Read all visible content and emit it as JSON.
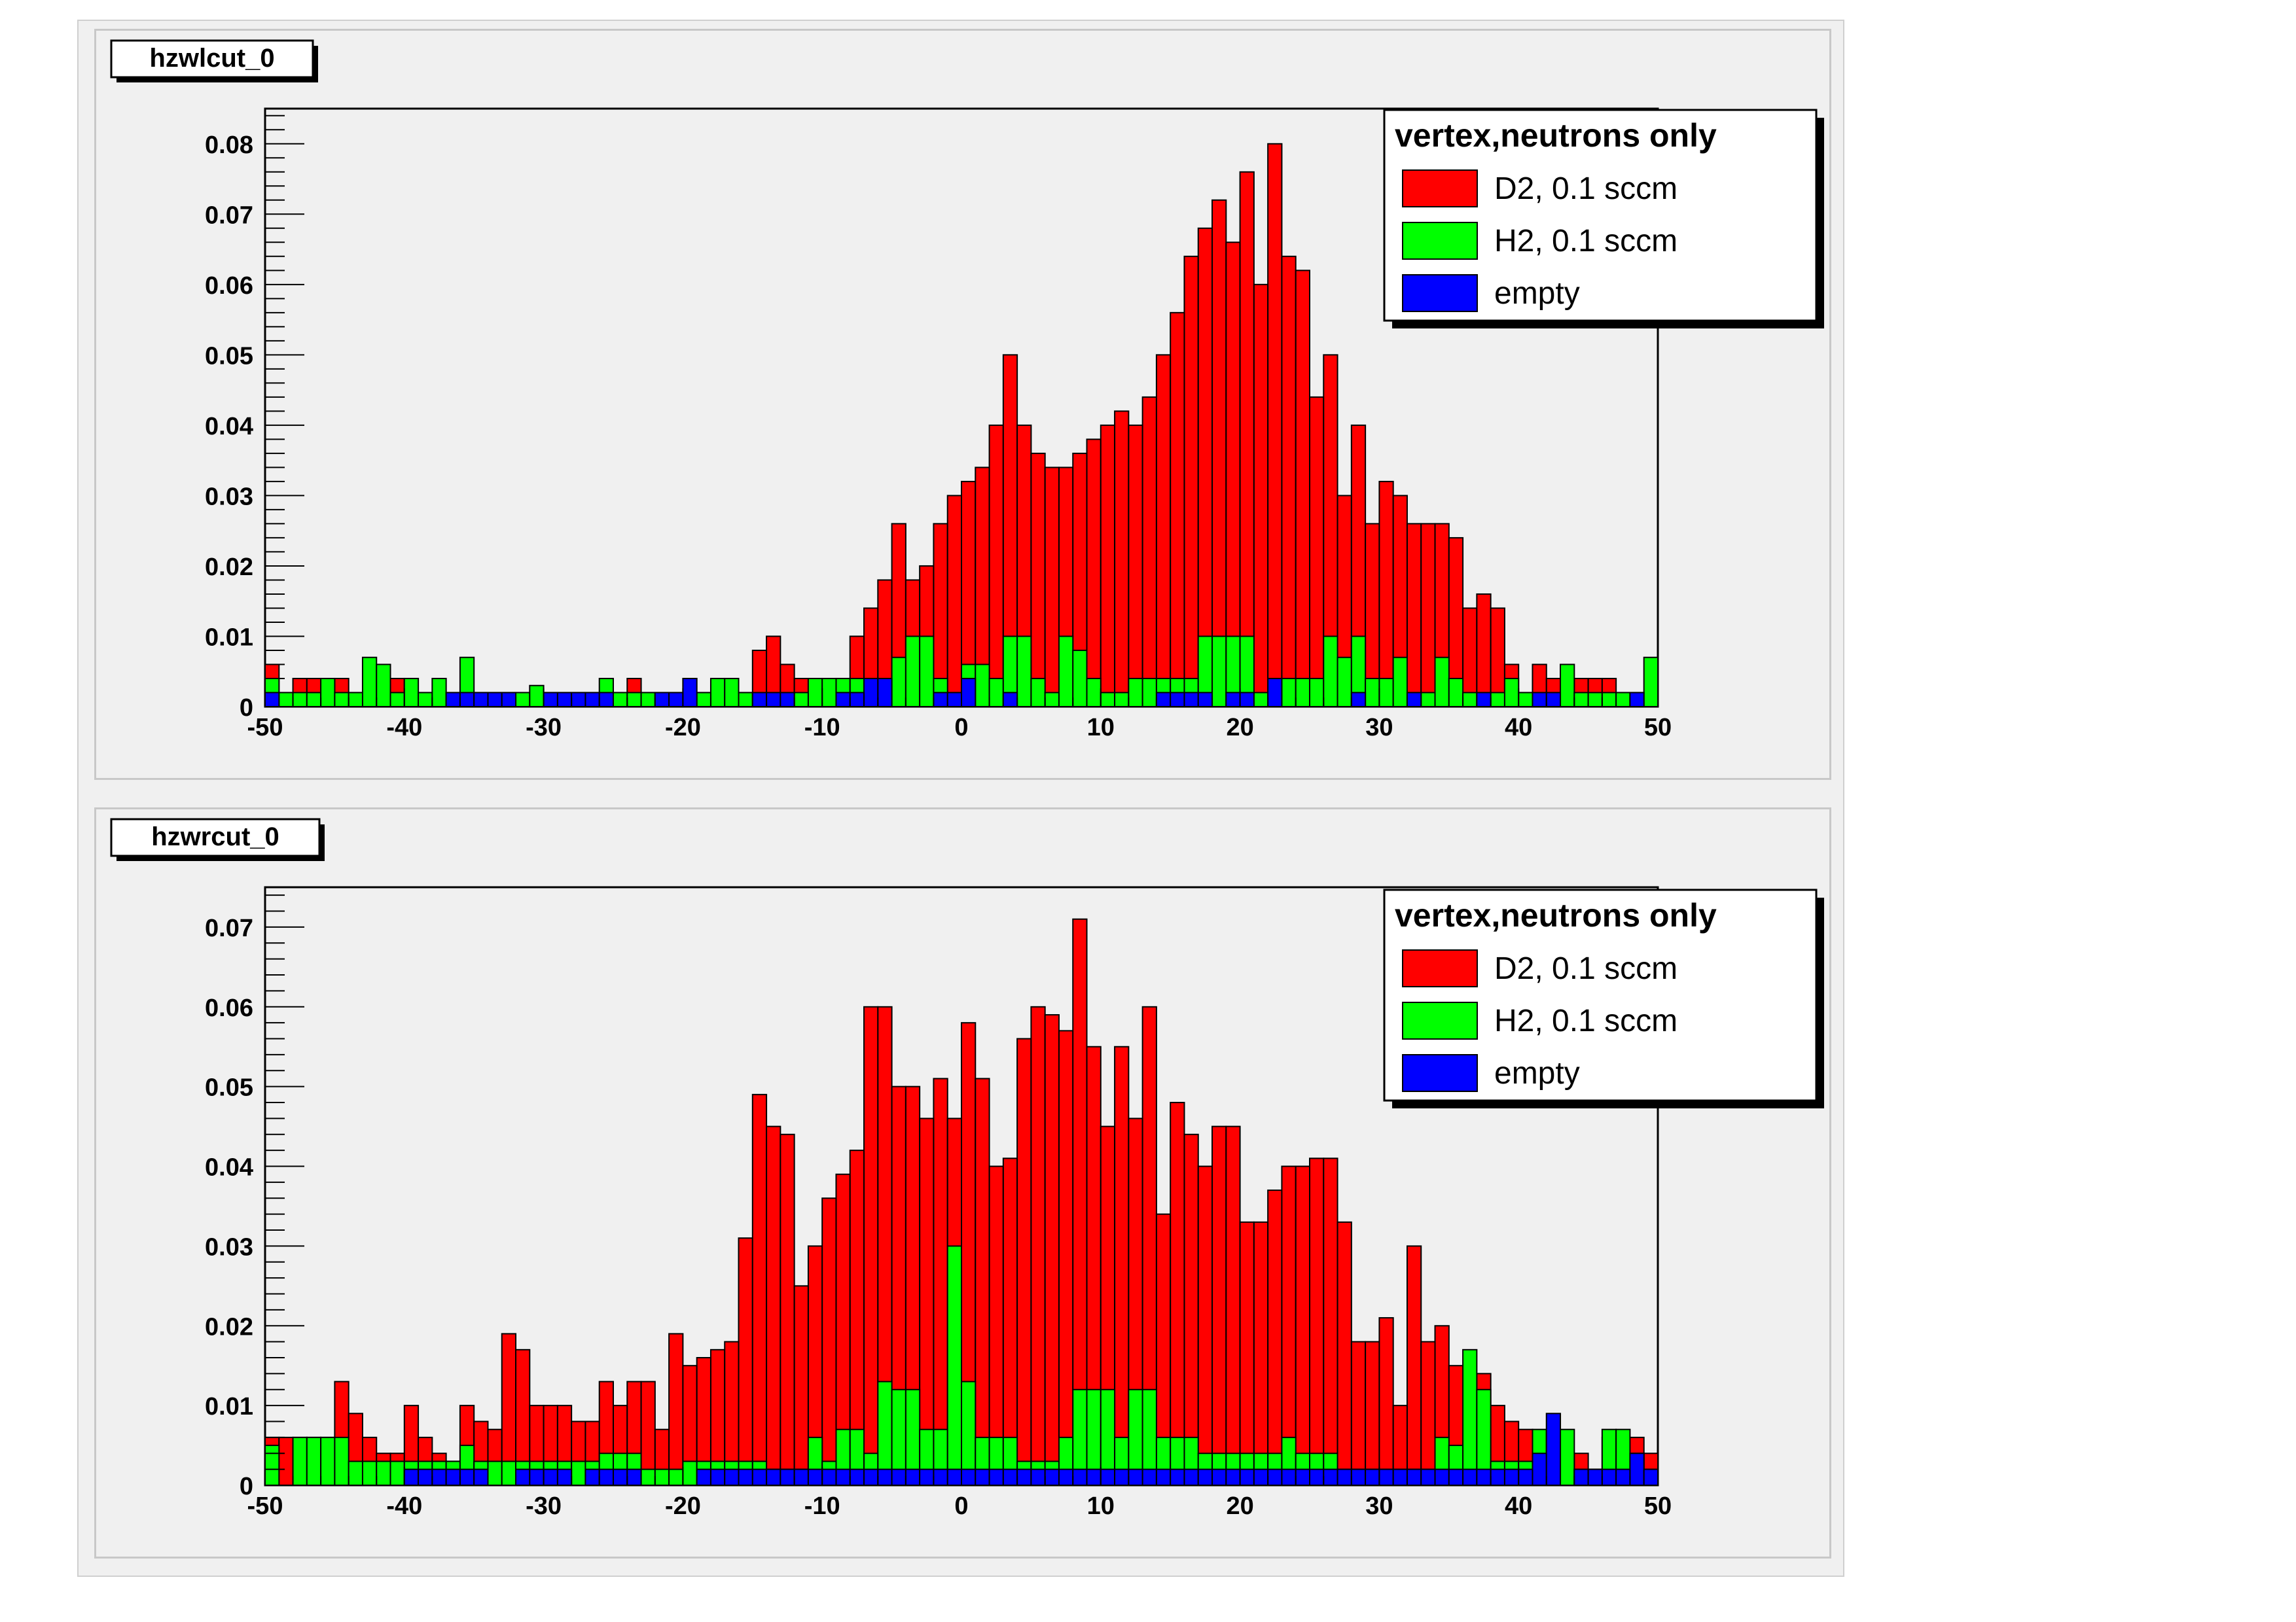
{
  "colors": {
    "D2": "#ff0000",
    "H2": "#00ff00",
    "empty": "#0000ff",
    "pad_background": "#f0f0f0",
    "axes": "#000000"
  },
  "pads": [
    {
      "title": "hzwlcut_0",
      "legend": {
        "header": "vertex,neutrons only",
        "entries": [
          {
            "label": "D2, 0.1 sccm",
            "color": "#ff0000"
          },
          {
            "label": "H2, 0.1 sccm",
            "color": "#00ff00"
          },
          {
            "label": "empty",
            "color": "#0000ff"
          }
        ]
      }
    },
    {
      "title": "hzwrcut_0",
      "legend": {
        "header": "vertex,neutrons only",
        "entries": [
          {
            "label": "D2, 0.1 sccm",
            "color": "#ff0000"
          },
          {
            "label": "H2, 0.1 sccm",
            "color": "#00ff00"
          },
          {
            "label": "empty",
            "color": "#0000ff"
          }
        ]
      }
    }
  ],
  "chart_data": [
    {
      "type": "histogram",
      "title": "hzwlcut_0",
      "bin_range": [
        -50,
        50
      ],
      "xlim": [
        -50,
        50
      ],
      "ylim": [
        0,
        0.085
      ],
      "x_ticks": [
        -50,
        -40,
        -30,
        -20,
        -10,
        0,
        10,
        20,
        30,
        40,
        50
      ],
      "y_ticks": [
        0,
        0.01,
        0.02,
        0.03,
        0.04,
        0.05,
        0.06,
        0.07,
        0.08
      ],
      "x_tick_labels": [
        "-50",
        "-40",
        "-30",
        "-20",
        "-10",
        "0",
        "10",
        "20",
        "30",
        "40",
        "50"
      ],
      "y_tick_labels": [
        "0",
        "0.01",
        "0.02",
        "0.03",
        "0.04",
        "0.05",
        "0.06",
        "0.07",
        "0.08"
      ],
      "series": [
        {
          "name": "D2, 0.1 sccm",
          "color": "#ff0000",
          "values": [
            0.006,
            0.002,
            0.004,
            0.004,
            0.004,
            0.004,
            0.002,
            0.002,
            0.004,
            0.004,
            0.004,
            0.002,
            0.002,
            0.002,
            0.002,
            0.002,
            0.002,
            0.002,
            0.002,
            0.002,
            0.002,
            0.002,
            0.002,
            0.002,
            0.002,
            0.002,
            0.004,
            0.002,
            0.002,
            0.002,
            0.002,
            0.002,
            0.002,
            0.002,
            0.002,
            0.008,
            0.01,
            0.006,
            0.004,
            0.002,
            0.002,
            0.004,
            0.01,
            0.014,
            0.018,
            0.026,
            0.018,
            0.02,
            0.026,
            0.03,
            0.032,
            0.034,
            0.04,
            0.05,
            0.04,
            0.036,
            0.034,
            0.034,
            0.036,
            0.038,
            0.04,
            0.042,
            0.04,
            0.044,
            0.05,
            0.056,
            0.064,
            0.068,
            0.072,
            0.066,
            0.076,
            0.06,
            0.08,
            0.064,
            0.062,
            0.044,
            0.05,
            0.03,
            0.04,
            0.026,
            0.032,
            0.03,
            0.026,
            0.026,
            0.026,
            0.024,
            0.014,
            0.016,
            0.014,
            0.006,
            0.002,
            0.006,
            0.004,
            0.004,
            0.004,
            0.004,
            0.004,
            0.002,
            0.002,
            0.002
          ]
        },
        {
          "name": "H2, 0.1 sccm",
          "color": "#00ff00",
          "values": [
            0.004,
            0.002,
            0.002,
            0.002,
            0.004,
            0.002,
            0.002,
            0.007,
            0.006,
            0.002,
            0.004,
            0.002,
            0.004,
            0.002,
            0.007,
            0.002,
            0.002,
            0.002,
            0.002,
            0.003,
            0.002,
            0.002,
            0.002,
            0.002,
            0.004,
            0.002,
            0.002,
            0.002,
            0.002,
            0.002,
            0.002,
            0.002,
            0.004,
            0.004,
            0.002,
            0.002,
            0.002,
            0.002,
            0.002,
            0.004,
            0.004,
            0.004,
            0.004,
            0.004,
            0.002,
            0.007,
            0.01,
            0.01,
            0.004,
            0.002,
            0.006,
            0.006,
            0.004,
            0.01,
            0.01,
            0.004,
            0.002,
            0.01,
            0.008,
            0.004,
            0.002,
            0.002,
            0.004,
            0.004,
            0.004,
            0.004,
            0.004,
            0.01,
            0.01,
            0.01,
            0.01,
            0.002,
            0.002,
            0.004,
            0.004,
            0.004,
            0.01,
            0.007,
            0.01,
            0.004,
            0.004,
            0.007,
            0.002,
            0.002,
            0.007,
            0.004,
            0.002,
            0.002,
            0.002,
            0.004,
            0.002,
            0.002,
            0.002,
            0.006,
            0.002,
            0.002,
            0.002,
            0.002,
            0.002,
            0.007
          ]
        },
        {
          "name": "empty",
          "color": "#0000ff",
          "values": [
            0.002,
            0,
            0,
            0,
            0,
            0,
            0,
            0,
            0,
            0,
            0,
            0,
            0,
            0.002,
            0.002,
            0.002,
            0.002,
            0.002,
            0,
            0,
            0.002,
            0.002,
            0.002,
            0.002,
            0.002,
            0,
            0,
            0,
            0.002,
            0.002,
            0.004,
            0,
            0,
            0,
            0,
            0.002,
            0.002,
            0.002,
            0,
            0,
            0,
            0.002,
            0.002,
            0.004,
            0.004,
            0,
            0,
            0,
            0.002,
            0.002,
            0.004,
            0,
            0,
            0.002,
            0,
            0,
            0,
            0,
            0,
            0,
            0,
            0,
            0,
            0,
            0.002,
            0.002,
            0.002,
            0.002,
            0,
            0.002,
            0.002,
            0,
            0.004,
            0,
            0,
            0,
            0,
            0,
            0.002,
            0,
            0,
            0,
            0.002,
            0,
            0,
            0,
            0,
            0.002,
            0,
            0,
            0,
            0.002,
            0.002,
            0,
            0,
            0,
            0,
            0,
            0.002,
            0
          ]
        }
      ]
    },
    {
      "type": "histogram",
      "title": "hzwrcut_0",
      "bin_range": [
        -50,
        50
      ],
      "xlim": [
        -50,
        50
      ],
      "ylim": [
        0,
        0.075
      ],
      "x_ticks": [
        -50,
        -40,
        -30,
        -20,
        -10,
        0,
        10,
        20,
        30,
        40,
        50
      ],
      "y_ticks": [
        0,
        0.01,
        0.02,
        0.03,
        0.04,
        0.05,
        0.06,
        0.07
      ],
      "x_tick_labels": [
        "-50",
        "-40",
        "-30",
        "-20",
        "-10",
        "0",
        "10",
        "20",
        "30",
        "40",
        "50"
      ],
      "y_tick_labels": [
        "0",
        "0.01",
        "0.02",
        "0.03",
        "0.04",
        "0.05",
        "0.06",
        "0.07"
      ],
      "series": [
        {
          "name": "D2, 0.1 sccm",
          "color": "#ff0000",
          "values": [
            0.006,
            0.006,
            0.006,
            0.006,
            0.006,
            0.013,
            0.009,
            0.006,
            0.004,
            0.004,
            0.01,
            0.006,
            0.004,
            0.003,
            0.01,
            0.008,
            0.007,
            0.019,
            0.017,
            0.01,
            0.01,
            0.01,
            0.008,
            0.008,
            0.013,
            0.01,
            0.013,
            0.013,
            0.007,
            0.019,
            0.015,
            0.016,
            0.017,
            0.018,
            0.031,
            0.049,
            0.045,
            0.044,
            0.025,
            0.03,
            0.036,
            0.039,
            0.042,
            0.06,
            0.06,
            0.05,
            0.05,
            0.046,
            0.051,
            0.046,
            0.058,
            0.051,
            0.04,
            0.041,
            0.056,
            0.06,
            0.059,
            0.057,
            0.071,
            0.055,
            0.045,
            0.055,
            0.046,
            0.06,
            0.034,
            0.048,
            0.044,
            0.04,
            0.045,
            0.045,
            0.033,
            0.033,
            0.037,
            0.04,
            0.04,
            0.041,
            0.041,
            0.033,
            0.018,
            0.018,
            0.021,
            0.01,
            0.03,
            0.018,
            0.02,
            0.015,
            0.007,
            0.014,
            0.01,
            0.008,
            0.007,
            0.003,
            0.004,
            0.004,
            0.004,
            0.002,
            0.006,
            0.006,
            0.006,
            0.004
          ]
        },
        {
          "name": "H2, 0.1 sccm",
          "color": "#00ff00",
          "values": [
            0.005,
            0,
            0.006,
            0.006,
            0.006,
            0.006,
            0.003,
            0.003,
            0.003,
            0.003,
            0.003,
            0.003,
            0.003,
            0.003,
            0.005,
            0.003,
            0.003,
            0.003,
            0.003,
            0.003,
            0.003,
            0.003,
            0.003,
            0.003,
            0.004,
            0.004,
            0.004,
            0.002,
            0.002,
            0.002,
            0.003,
            0.003,
            0.003,
            0.003,
            0.003,
            0.003,
            0.002,
            0.002,
            0.002,
            0.006,
            0.003,
            0.007,
            0.007,
            0.004,
            0.013,
            0.012,
            0.012,
            0.007,
            0.007,
            0.03,
            0.013,
            0.006,
            0.006,
            0.006,
            0.003,
            0.003,
            0.003,
            0.006,
            0.012,
            0.012,
            0.012,
            0.006,
            0.012,
            0.012,
            0.006,
            0.006,
            0.006,
            0.004,
            0.004,
            0.004,
            0.004,
            0.004,
            0.004,
            0.006,
            0.004,
            0.004,
            0.004,
            0.002,
            0.002,
            0.002,
            0.002,
            0.002,
            0.002,
            0.002,
            0.006,
            0.005,
            0.017,
            0.012,
            0.003,
            0.003,
            0.003,
            0.007,
            0.007,
            0.007,
            0.002,
            0.002,
            0.007,
            0.007,
            0.004,
            0.002
          ]
        },
        {
          "name": "empty",
          "color": "#0000ff",
          "values": [
            0,
            0,
            0,
            0,
            0,
            0,
            0,
            0,
            0,
            0,
            0.002,
            0.002,
            0.002,
            0.002,
            0.002,
            0.002,
            0,
            0,
            0.002,
            0.002,
            0.002,
            0.002,
            0,
            0.002,
            0.002,
            0.002,
            0.002,
            0,
            0,
            0,
            0,
            0.002,
            0.002,
            0.002,
            0.002,
            0.002,
            0.002,
            0.002,
            0.002,
            0.002,
            0.002,
            0.002,
            0.002,
            0.002,
            0.002,
            0.002,
            0.002,
            0.002,
            0.002,
            0.002,
            0.002,
            0.002,
            0.002,
            0.002,
            0.002,
            0.002,
            0.002,
            0.002,
            0.002,
            0.002,
            0.002,
            0.002,
            0.002,
            0.002,
            0.002,
            0.002,
            0.002,
            0.002,
            0.002,
            0.002,
            0.002,
            0.002,
            0.002,
            0.002,
            0.002,
            0.002,
            0.002,
            0.002,
            0.002,
            0.002,
            0.002,
            0.002,
            0.002,
            0.002,
            0.002,
            0.002,
            0.002,
            0.002,
            0.002,
            0.002,
            0.002,
            0.004,
            0.009,
            0,
            0.002,
            0.002,
            0.002,
            0.002,
            0.004,
            0.002
          ]
        }
      ]
    }
  ]
}
